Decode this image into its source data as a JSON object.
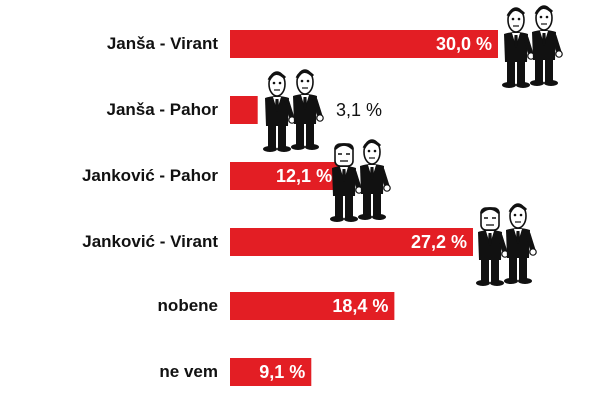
{
  "chart_data": {
    "type": "bar",
    "orientation": "horizontal",
    "categories": [
      "Janša - Virant",
      "Janša - Pahor",
      "Janković - Pahor",
      "Janković - Virant",
      "nobene",
      "ne vem"
    ],
    "values": [
      30.0,
      3.1,
      12.1,
      27.2,
      18.4,
      9.1
    ],
    "value_labels": [
      "30,0 %",
      "3,1 %",
      "12,1 %",
      "27,2 %",
      "18,4 %",
      "9,1 %"
    ],
    "bar_color": "#e31e24",
    "label_color": "#ffffff",
    "grid": false,
    "legend": "none"
  }
}
